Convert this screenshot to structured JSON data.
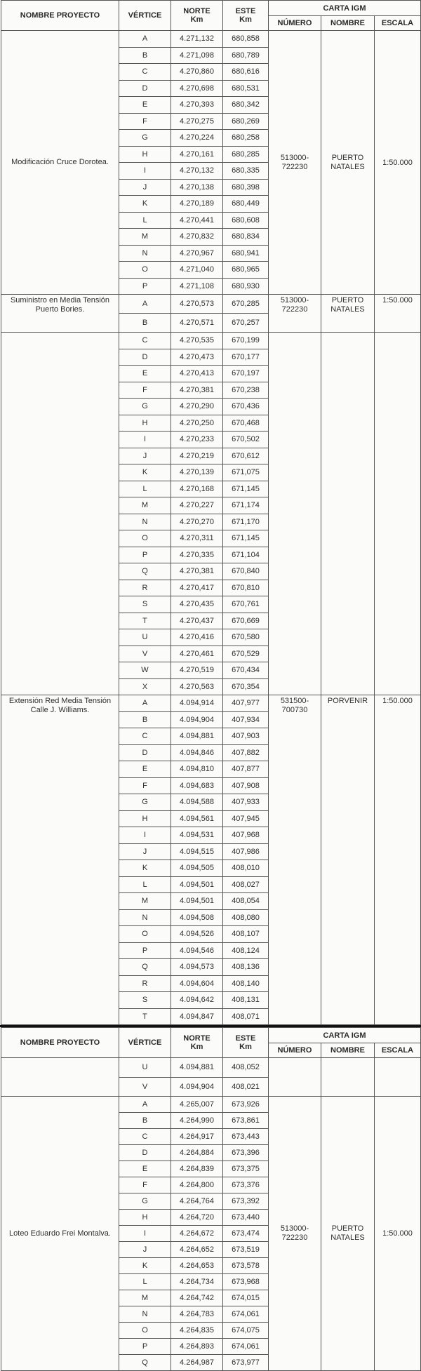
{
  "header": {
    "nombre_proyecto": "NOMBRE PROYECTO",
    "vertice": "VÉRTICE",
    "norte": "NORTE",
    "norte_unit": "Km",
    "este": "ESTE",
    "este_unit": "Km",
    "carta_igm": "CARTA IGM",
    "numero": "NÚMERO",
    "nombre": "NOMBRE",
    "escala": "ESCALA"
  },
  "pages": [
    {
      "groups": [
        {
          "project": "Modificación Cruce Dorotea.",
          "numero": "513000-\n722230",
          "nombre": "PUERTO\nNATALES",
          "escala": "1:50.000",
          "align": "mid",
          "rows": [
            [
              "A",
              "4.271,132",
              "680,858"
            ],
            [
              "B",
              "4.271,098",
              "680,789"
            ],
            [
              "C",
              "4.270,860",
              "680,616"
            ],
            [
              "D",
              "4.270,698",
              "680,531"
            ],
            [
              "E",
              "4.270,393",
              "680,342"
            ],
            [
              "F",
              "4.270,275",
              "680,269"
            ],
            [
              "G",
              "4.270,224",
              "680,258"
            ],
            [
              "H",
              "4.270,161",
              "680,285"
            ],
            [
              "I",
              "4.270,132",
              "680,335"
            ],
            [
              "J",
              "4.270,138",
              "680,398"
            ],
            [
              "K",
              "4.270,189",
              "680,449"
            ],
            [
              "L",
              "4.270,441",
              "680,608"
            ],
            [
              "M",
              "4.270,832",
              "680,834"
            ],
            [
              "N",
              "4.270,967",
              "680,941"
            ],
            [
              "O",
              "4.271,040",
              "680,965"
            ],
            [
              "P",
              "4.271,108",
              "680,930"
            ]
          ]
        },
        {
          "project": "Suministro en Media Tensión Puerto Bories.",
          "numero": "513000-\n722230",
          "nombre": "PUERTO\nNATALES",
          "escala": "1:50.000",
          "align": "top",
          "rows": [
            [
              "A",
              "4.270,573",
              "670,285"
            ],
            [
              "B",
              "4.270,571",
              "670,257"
            ]
          ]
        },
        {
          "project": "",
          "numero": "",
          "nombre": "",
          "escala": "",
          "align": "top",
          "rows": [
            [
              "C",
              "4.270,535",
              "670,199"
            ],
            [
              "D",
              "4.270,473",
              "670,177"
            ],
            [
              "E",
              "4.270,413",
              "670,197"
            ],
            [
              "F",
              "4.270,381",
              "670,238"
            ],
            [
              "G",
              "4.270,290",
              "670,436"
            ],
            [
              "H",
              "4.270,250",
              "670,468"
            ],
            [
              "I",
              "4.270,233",
              "670,502"
            ],
            [
              "J",
              "4.270,219",
              "670,612"
            ],
            [
              "K",
              "4.270,139",
              "671,075"
            ],
            [
              "L",
              "4.270,168",
              "671,145"
            ],
            [
              "M",
              "4.270,227",
              "671,174"
            ],
            [
              "N",
              "4.270,270",
              "671,170"
            ],
            [
              "O",
              "4.270,311",
              "671,145"
            ],
            [
              "P",
              "4.270,335",
              "671,104"
            ],
            [
              "Q",
              "4.270,381",
              "670,840"
            ],
            [
              "R",
              "4.270,417",
              "670,810"
            ],
            [
              "S",
              "4.270,435",
              "670,761"
            ],
            [
              "T",
              "4.270,437",
              "670,669"
            ],
            [
              "U",
              "4.270,416",
              "670,580"
            ],
            [
              "V",
              "4.270,461",
              "670,529"
            ],
            [
              "W",
              "4.270,519",
              "670,434"
            ],
            [
              "X",
              "4.270,563",
              "670,354"
            ]
          ]
        },
        {
          "project": "Extensión Red Media Tensión Calle J. Williams.",
          "numero": "531500-\n700730",
          "nombre": "PORVENIR",
          "escala": "1:50.000",
          "align": "top",
          "rows": [
            [
              "A",
              "4.094,914",
              "407,977"
            ],
            [
              "B",
              "4.094,904",
              "407,934"
            ],
            [
              "C",
              "4.094,881",
              "407,903"
            ],
            [
              "D",
              "4.094,846",
              "407,882"
            ],
            [
              "E",
              "4.094,810",
              "407,877"
            ],
            [
              "F",
              "4.094,683",
              "407,908"
            ],
            [
              "G",
              "4.094,588",
              "407,933"
            ],
            [
              "H",
              "4.094,561",
              "407,945"
            ],
            [
              "I",
              "4.094,531",
              "407,968"
            ],
            [
              "J",
              "4.094,515",
              "407,986"
            ],
            [
              "K",
              "4.094,505",
              "408,010"
            ],
            [
              "L",
              "4.094,501",
              "408,027"
            ],
            [
              "M",
              "4.094,501",
              "408,054"
            ],
            [
              "N",
              "4.094,508",
              "408,080"
            ],
            [
              "O",
              "4.094,526",
              "408,107"
            ],
            [
              "P",
              "4.094,546",
              "408,124"
            ],
            [
              "Q",
              "4.094,573",
              "408,136"
            ],
            [
              "R",
              "4.094,604",
              "408,140"
            ],
            [
              "S",
              "4.094,642",
              "408,131"
            ],
            [
              "T",
              "4.094,847",
              "408,071"
            ]
          ]
        }
      ]
    },
    {
      "groups": [
        {
          "project": "",
          "numero": "",
          "nombre": "",
          "escala": "",
          "align": "top",
          "rows": [
            [
              "U",
              "4.094,881",
              "408,052"
            ],
            [
              "V",
              "4.094,904",
              "408,021"
            ]
          ]
        },
        {
          "project": "Loteo Eduardo Frei Montalva.",
          "numero": "513000-\n722230",
          "nombre": "PUERTO\nNATALES",
          "escala": "1:50.000",
          "align": "mid",
          "rows": [
            [
              "A",
              "4.265,007",
              "673,926"
            ],
            [
              "B",
              "4.264,990",
              "673,861"
            ],
            [
              "C",
              "4.264,917",
              "673,443"
            ],
            [
              "D",
              "4.264,884",
              "673,396"
            ],
            [
              "E",
              "4.264,839",
              "673,375"
            ],
            [
              "F",
              "4.264,800",
              "673,376"
            ],
            [
              "G",
              "4.264,764",
              "673,392"
            ],
            [
              "H",
              "4.264,720",
              "673,440"
            ],
            [
              "I",
              "4.264,672",
              "673,474"
            ],
            [
              "J",
              "4.264,652",
              "673,519"
            ],
            [
              "K",
              "4.264,653",
              "673,578"
            ],
            [
              "L",
              "4.264,734",
              "673,968"
            ],
            [
              "M",
              "4.264,742",
              "674,015"
            ],
            [
              "N",
              "4.264,783",
              "674,061"
            ],
            [
              "O",
              "4.264,835",
              "674,075"
            ],
            [
              "P",
              "4.264,893",
              "674,061"
            ],
            [
              "Q",
              "4.264,987",
              "673,977"
            ]
          ]
        }
      ]
    }
  ]
}
